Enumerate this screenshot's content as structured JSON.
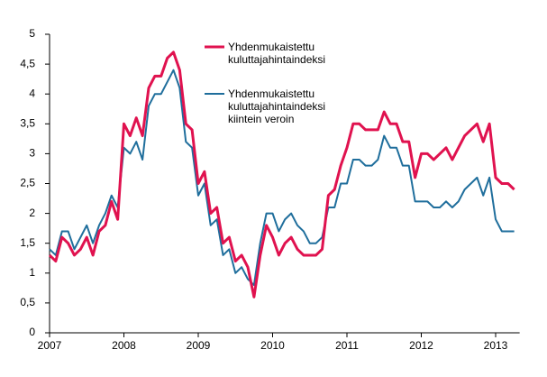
{
  "chart_data": {
    "type": "line",
    "categories": [
      "2007",
      null,
      null,
      null,
      null,
      null,
      null,
      null,
      null,
      null,
      null,
      null,
      "2008",
      null,
      null,
      null,
      null,
      null,
      null,
      null,
      null,
      null,
      null,
      null,
      "2009",
      null,
      null,
      null,
      null,
      null,
      null,
      null,
      null,
      null,
      null,
      null,
      "2010",
      null,
      null,
      null,
      null,
      null,
      null,
      null,
      null,
      null,
      null,
      null,
      "2011",
      null,
      null,
      null,
      null,
      null,
      null,
      null,
      null,
      null,
      null,
      null,
      "2012",
      null,
      null,
      null,
      null,
      null,
      null,
      null,
      null,
      null,
      null,
      null,
      "2013",
      null,
      null,
      null
    ],
    "series": [
      {
        "name": "Yhdenmukaistettu kuluttajahintaindeksi",
        "color": "#e0124f",
        "values": [
          1.3,
          1.2,
          1.6,
          1.5,
          1.3,
          1.4,
          1.6,
          1.3,
          1.7,
          1.8,
          2.2,
          1.9,
          3.5,
          3.3,
          3.6,
          3.3,
          4.1,
          4.3,
          4.3,
          4.6,
          4.7,
          4.4,
          3.5,
          3.4,
          2.5,
          2.7,
          2.0,
          2.1,
          1.5,
          1.6,
          1.2,
          1.3,
          1.1,
          0.6,
          1.3,
          1.8,
          1.6,
          1.3,
          1.5,
          1.6,
          1.4,
          1.3,
          1.3,
          1.3,
          1.4,
          2.3,
          2.4,
          2.8,
          3.1,
          3.5,
          3.5,
          3.4,
          3.4,
          3.4,
          3.7,
          3.5,
          3.5,
          3.2,
          3.2,
          2.6,
          3.0,
          3.0,
          2.9,
          3.0,
          3.1,
          2.9,
          3.1,
          3.3,
          3.4,
          3.5,
          3.2,
          3.5,
          2.6,
          2.5,
          2.5,
          2.4
        ]
      },
      {
        "name": "Yhdenmukaistettu kuluttajahintaindeksi kiintein veroin",
        "color": "#1f6e9c",
        "values": [
          1.4,
          1.3,
          1.7,
          1.7,
          1.4,
          1.6,
          1.8,
          1.5,
          1.8,
          2.0,
          2.3,
          2.1,
          3.1,
          3.0,
          3.2,
          2.9,
          3.8,
          4.0,
          4.0,
          4.2,
          4.4,
          4.1,
          3.2,
          3.1,
          2.3,
          2.5,
          1.8,
          1.9,
          1.3,
          1.4,
          1.0,
          1.1,
          0.9,
          0.8,
          1.5,
          2.0,
          2.0,
          1.7,
          1.9,
          2.0,
          1.8,
          1.7,
          1.5,
          1.5,
          1.6,
          2.1,
          2.1,
          2.5,
          2.5,
          2.9,
          2.9,
          2.8,
          2.8,
          2.9,
          3.3,
          3.1,
          3.1,
          2.8,
          2.8,
          2.2,
          2.2,
          2.2,
          2.1,
          2.1,
          2.2,
          2.1,
          2.2,
          2.4,
          2.5,
          2.6,
          2.3,
          2.6,
          1.9,
          1.7,
          1.7,
          1.7
        ]
      }
    ],
    "ylim": [
      0,
      5
    ],
    "yticks": [
      0,
      {
        "value": 0.5,
        "label": "0,5"
      },
      1,
      {
        "value": 1.5,
        "label": "1,5"
      },
      2,
      {
        "value": 2.5,
        "label": "2,5"
      },
      3,
      {
        "value": 3.5,
        "label": "3,5"
      },
      4,
      {
        "value": 4.5,
        "label": "4,5"
      },
      5
    ],
    "grid": false
  }
}
